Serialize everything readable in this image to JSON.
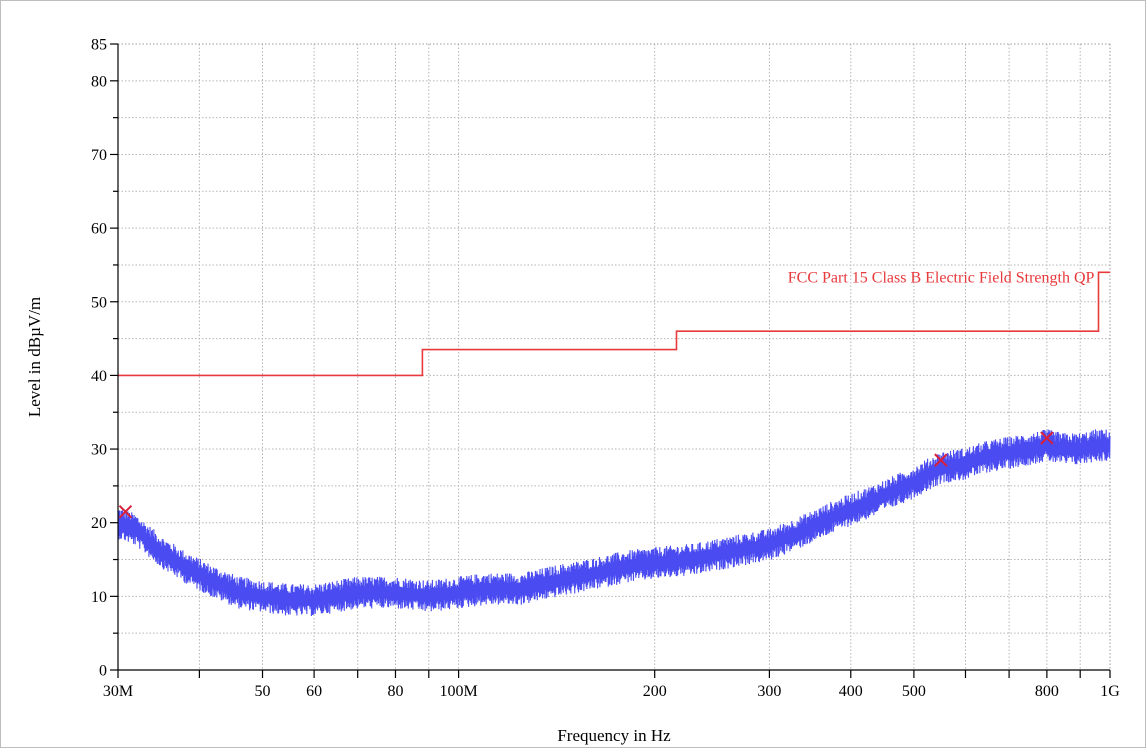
{
  "chart_data": {
    "type": "line",
    "title": "",
    "xlabel": "Frequency in Hz",
    "ylabel": "Level in dBµV/m",
    "x_scale": "log",
    "xlim": [
      30000000,
      1000000000
    ],
    "ylim": [
      0,
      85
    ],
    "grid": true,
    "x_ticks": [
      {
        "value": 30000000,
        "label": "30M"
      },
      {
        "value": 50000000,
        "label": "50"
      },
      {
        "value": 60000000,
        "label": "60"
      },
      {
        "value": 80000000,
        "label": "80"
      },
      {
        "value": 100000000,
        "label": "100M"
      },
      {
        "value": 200000000,
        "label": "200"
      },
      {
        "value": 300000000,
        "label": "300"
      },
      {
        "value": 400000000,
        "label": "400"
      },
      {
        "value": 500000000,
        "label": "500"
      },
      {
        "value": 800000000,
        "label": "800"
      },
      {
        "value": 1000000000,
        "label": "1G"
      }
    ],
    "x_minor_ticks": [
      40000000,
      70000000,
      90000000,
      600000000,
      700000000,
      900000000
    ],
    "y_ticks": [
      {
        "value": 0,
        "label": "0"
      },
      {
        "value": 10,
        "label": "10"
      },
      {
        "value": 20,
        "label": "20"
      },
      {
        "value": 30,
        "label": "30"
      },
      {
        "value": 40,
        "label": "40"
      },
      {
        "value": 50,
        "label": "50"
      },
      {
        "value": 60,
        "label": "60"
      },
      {
        "value": 70,
        "label": "70"
      },
      {
        "value": 80,
        "label": "80"
      },
      {
        "value": 85,
        "label": "85"
      }
    ],
    "y_minor_ticks": [
      5,
      15,
      25,
      35,
      45,
      55,
      65,
      75
    ],
    "limit_line": {
      "label": "FCC Part 15 Class B Electric Field Strength QP",
      "color": "#e8393c",
      "steps": [
        {
          "from": 30000000,
          "to": 88000000,
          "level": 40
        },
        {
          "from": 88000000,
          "to": 216000000,
          "level": 43.5
        },
        {
          "from": 216000000,
          "to": 960000000,
          "level": 46
        },
        {
          "from": 960000000,
          "to": 1000000000,
          "level": 54
        }
      ]
    },
    "series": [
      {
        "color": "#4a4cf2",
        "x": [
          30000000,
          32000000,
          35000000,
          38000000,
          42000000,
          46000000,
          50000000,
          55000000,
          60000000,
          65000000,
          70000000,
          75000000,
          80000000,
          90000000,
          100000000,
          110000000,
          125000000,
          140000000,
          160000000,
          180000000,
          200000000,
          230000000,
          260000000,
          300000000,
          340000000,
          380000000,
          420000000,
          460000000,
          500000000,
          550000000,
          600000000,
          650000000,
          700000000,
          750000000,
          800000000,
          850000000,
          900000000,
          950000000,
          1000000000
        ],
        "y": [
          20,
          19,
          16,
          14,
          12,
          10.5,
          10,
          9.5,
          9.5,
          10,
          10.5,
          10.5,
          10.5,
          10,
          10.5,
          11,
          11,
          12,
          13,
          14,
          14.5,
          15,
          16,
          17,
          19,
          21,
          22.5,
          24,
          25.5,
          27.5,
          28,
          29,
          29.5,
          30,
          30.5,
          30,
          30,
          30.5,
          30.5
        ],
        "spread": 2.2
      }
    ],
    "markers": [
      {
        "x": 30800000,
        "y": 21.5
      },
      {
        "x": 550000000,
        "y": 28.5
      },
      {
        "x": 800000000,
        "y": 31.5
      }
    ],
    "marker_color": "#d8203a"
  }
}
